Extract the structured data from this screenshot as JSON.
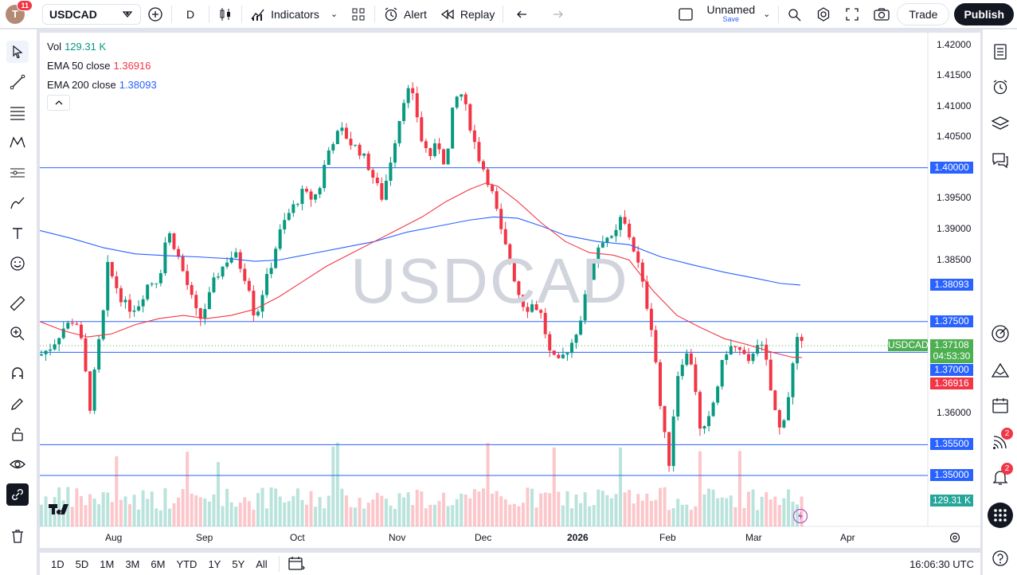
{
  "topbar": {
    "avatar_letter": "T",
    "notif_count": "11",
    "symbol": "USDCAD",
    "interval": "D",
    "indicators": "Indicators",
    "alert": "Alert",
    "replay": "Replay",
    "layout_name": "Unnamed",
    "layout_sub": "Save",
    "trade": "Trade",
    "publish": "Publish"
  },
  "legend": {
    "vol_label": "Vol",
    "vol_value": "129.31 K",
    "ema50_label": "EMA 50 close",
    "ema50_value": "1.36916",
    "ema200_label": "EMA 200 close",
    "ema200_value": "1.38093"
  },
  "watermark": "USDCAD",
  "price_axis": {
    "ticks": [
      "1.42000",
      "1.41500",
      "1.41000",
      "1.40500",
      "1.39500",
      "1.39000",
      "1.38500",
      "1.36000"
    ],
    "labels": {
      "level_1_40": "1.40000",
      "ema200": "1.38093",
      "level_1_375": "1.37500",
      "symbol_tag": "USDCAD",
      "last_price": "1.37108",
      "countdown": "04:53:30",
      "level_1_37": "1.37000",
      "ema50": "1.36916",
      "level_1_355": "1.35500",
      "level_1_35": "1.35000",
      "volume": "129.31 K"
    }
  },
  "time_axis": [
    "Aug",
    "Sep",
    "Oct",
    "Nov",
    "Dec",
    "2026",
    "Feb",
    "Mar",
    "Apr"
  ],
  "bottombar": {
    "ranges": [
      "1D",
      "5D",
      "1M",
      "3M",
      "6M",
      "YTD",
      "1Y",
      "5Y",
      "All"
    ],
    "clock": "16:06:30 UTC"
  },
  "rightbar_badges": {
    "alerts": "2",
    "notifications": "2"
  },
  "colors": {
    "up": "#089981",
    "down": "#f23645",
    "ema50": "#f23645",
    "ema200": "#2962ff",
    "hline": "#2962ff"
  },
  "chart_data": {
    "type": "candlestick",
    "symbol": "USDCAD",
    "ylim": [
      1.348,
      1.4215
    ],
    "horizontal_levels": [
      1.4,
      1.375,
      1.37,
      1.355,
      1.35
    ],
    "last_price": 1.37108,
    "ema50_last": 1.36916,
    "ema200_last": 1.38093,
    "volume_last": "129.31 K"
  }
}
